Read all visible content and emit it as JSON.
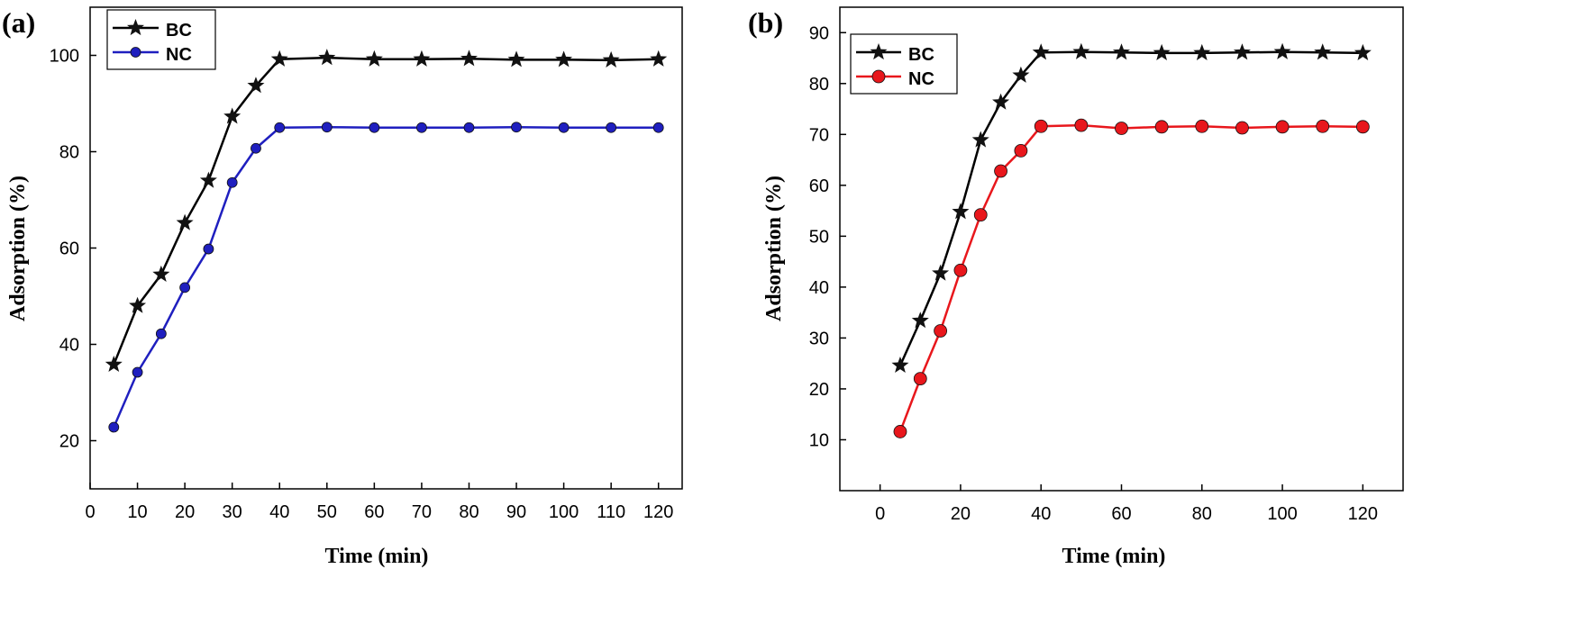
{
  "chart_data": [
    {
      "panel": "(a)",
      "type": "line",
      "xlabel": "Time (min)",
      "ylabel": "Adsorption (%)",
      "xlim": [
        0,
        125
      ],
      "ylim": [
        10,
        110
      ],
      "xticks": [
        0,
        10,
        20,
        30,
        40,
        50,
        60,
        70,
        80,
        90,
        100,
        110,
        120
      ],
      "yticks": [
        20,
        40,
        60,
        80,
        100
      ],
      "legend_position": "top-left",
      "x": [
        5,
        10,
        15,
        20,
        25,
        30,
        35,
        40,
        50,
        60,
        70,
        80,
        90,
        100,
        110,
        120
      ],
      "series": [
        {
          "name": "BC",
          "color": "#000000",
          "marker": "star",
          "values": [
            35.8,
            48.0,
            54.5,
            65.2,
            74.0,
            87.3,
            93.7,
            99.2,
            99.5,
            99.2,
            99.2,
            99.3,
            99.1,
            99.1,
            99.0,
            99.2
          ]
        },
        {
          "name": "NC",
          "color": "#1f1fbf",
          "marker": "circle",
          "values": [
            22.8,
            34.2,
            42.2,
            51.8,
            59.8,
            73.6,
            80.7,
            85.0,
            85.1,
            85.0,
            85.0,
            85.0,
            85.1,
            85.0,
            85.0,
            85.0
          ]
        }
      ]
    },
    {
      "panel": "(b)",
      "type": "line",
      "xlabel": "Time (min)",
      "ylabel": "Adsorption (%)",
      "xlim": [
        -10,
        130
      ],
      "ylim": [
        0,
        95
      ],
      "xticks": [
        0,
        20,
        40,
        60,
        80,
        100,
        120
      ],
      "yticks": [
        10,
        20,
        30,
        40,
        50,
        60,
        70,
        80,
        90
      ],
      "legend_position": "top-left",
      "x": [
        5,
        10,
        15,
        20,
        25,
        30,
        35,
        40,
        50,
        60,
        70,
        80,
        90,
        100,
        110,
        120
      ],
      "series": [
        {
          "name": "BC",
          "color": "#000000",
          "marker": "star",
          "values": [
            24.6,
            33.4,
            42.7,
            54.8,
            68.9,
            76.3,
            81.6,
            86.1,
            86.2,
            86.1,
            86.0,
            86.0,
            86.1,
            86.2,
            86.1,
            86.0
          ]
        },
        {
          "name": "NC",
          "color": "#e8171c",
          "marker": "circle",
          "values": [
            11.6,
            22.0,
            31.4,
            43.3,
            54.2,
            62.8,
            66.8,
            71.6,
            71.8,
            71.2,
            71.5,
            71.6,
            71.3,
            71.5,
            71.6,
            71.5
          ]
        }
      ]
    }
  ]
}
